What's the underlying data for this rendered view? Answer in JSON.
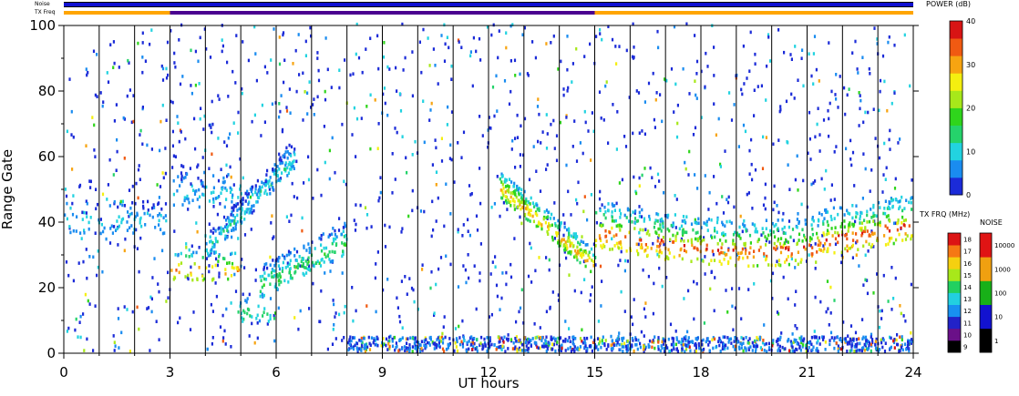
{
  "chart_data": {
    "type": "heatmap",
    "title": "",
    "xlabel": "UT hours",
    "ylabel": "Range Gate",
    "xlim": [
      0,
      24
    ],
    "ylim": [
      0,
      100
    ],
    "x_ticks": [
      0,
      3,
      6,
      9,
      12,
      15,
      18,
      21,
      24
    ],
    "y_ticks": [
      0,
      20,
      40,
      60,
      80,
      100
    ],
    "minor_x_interval": 1,
    "grid": "vertical lines at every hour",
    "top_bars": [
      {
        "label": "Noise",
        "segments": [
          {
            "from": 0,
            "to": 24,
            "color": "#1010d0"
          }
        ]
      },
      {
        "label": "TX Freq",
        "segments": [
          {
            "from": 0,
            "to": 3,
            "color": "#ffa500"
          },
          {
            "from": 3,
            "to": 15,
            "color": "#4b0090"
          },
          {
            "from": 15,
            "to": 24,
            "color": "#ffa500"
          }
        ]
      }
    ],
    "colorbars": {
      "power": {
        "title": "POWER (dB)",
        "ticks": [
          0,
          10,
          20,
          30,
          40
        ],
        "colors": [
          "#1b2bd8",
          "#1a8cf0",
          "#22d3e0",
          "#25d36b",
          "#2fd51c",
          "#a7e81a",
          "#f4ef10",
          "#f7a411",
          "#f05a12",
          "#d81414"
        ]
      },
      "tx_freq": {
        "title": "TX FRQ (MHz)",
        "ticks": [
          "9",
          "10",
          "11",
          "12",
          "13",
          "14",
          "15",
          "16",
          "17",
          "18"
        ],
        "colors": [
          "#000000",
          "#6a1088",
          "#2222c8",
          "#1890f0",
          "#22cfe0",
          "#22d060",
          "#a8e81a",
          "#f5d010",
          "#f57814",
          "#dc1414"
        ]
      },
      "noise": {
        "title": "NOISE",
        "ticks": [
          "1",
          "10",
          "100",
          "1000",
          "10000"
        ],
        "colors": [
          "#000000",
          "#1212d0",
          "#18b018",
          "#f0a010",
          "#e01414"
        ]
      }
    },
    "features": [
      {
        "name": "band-early",
        "hours": [
          0,
          2.9
        ],
        "gates": [
          36,
          46
        ],
        "power_db": 8
      },
      {
        "name": "band-3-5h",
        "hours": [
          3,
          5
        ],
        "gates": [
          21,
          31
        ],
        "power_db": 26
      },
      {
        "name": "upper-3-5h",
        "hours": [
          3,
          5
        ],
        "gates": [
          44,
          57
        ],
        "power_db": 7
      },
      {
        "name": "rise-4-6.5h",
        "hours": [
          4,
          6.5
        ],
        "gates": [
          32,
          60
        ],
        "power_db": 9
      },
      {
        "name": "low-5-6h",
        "hours": [
          4.9,
          6
        ],
        "gates": [
          9,
          18
        ],
        "power_db": 12
      },
      {
        "name": "band-5.5-8h",
        "hours": [
          5.5,
          8
        ],
        "gates": [
          18,
          40
        ],
        "power_db": 13
      },
      {
        "name": "descent-12.3-15h",
        "hours": [
          12.3,
          15
        ],
        "gates": [
          22,
          52
        ],
        "power_db": 24
      },
      {
        "name": "band-15-24h",
        "hours": [
          15,
          24
        ],
        "gates": [
          26,
          48
        ],
        "power_db": 22
      },
      {
        "name": "ground-scatter-floor",
        "hours": [
          8,
          24
        ],
        "gates": [
          0,
          5
        ],
        "power_db": 6
      }
    ]
  }
}
